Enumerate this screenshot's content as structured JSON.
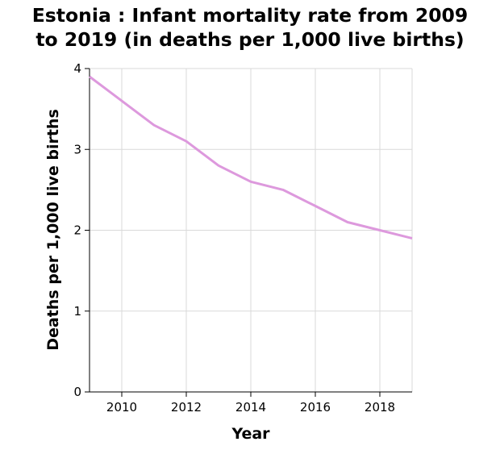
{
  "title": {
    "line1": "Estonia : Infant mortality rate from 2009",
    "line2": "to 2019 (in deaths per 1,000 live births)"
  },
  "chart_data": {
    "type": "line",
    "title": "Estonia : Infant mortality rate from 2009 to 2019 (in deaths per 1,000 live births)",
    "xlabel": "Year",
    "ylabel": "Deaths per 1,000 live births",
    "x": [
      2009,
      2010,
      2011,
      2012,
      2013,
      2014,
      2015,
      2016,
      2017,
      2018,
      2019
    ],
    "y": [
      3.9,
      3.6,
      3.3,
      3.1,
      2.8,
      2.6,
      2.5,
      2.3,
      2.1,
      2.0,
      1.9
    ],
    "xlim": [
      2009,
      2019
    ],
    "ylim": [
      0,
      4
    ],
    "xticks": [
      2010,
      2012,
      2014,
      2016,
      2018
    ],
    "yticks": [
      0,
      1,
      2,
      3,
      4
    ],
    "grid": true,
    "line_color": "#dd99dd"
  }
}
